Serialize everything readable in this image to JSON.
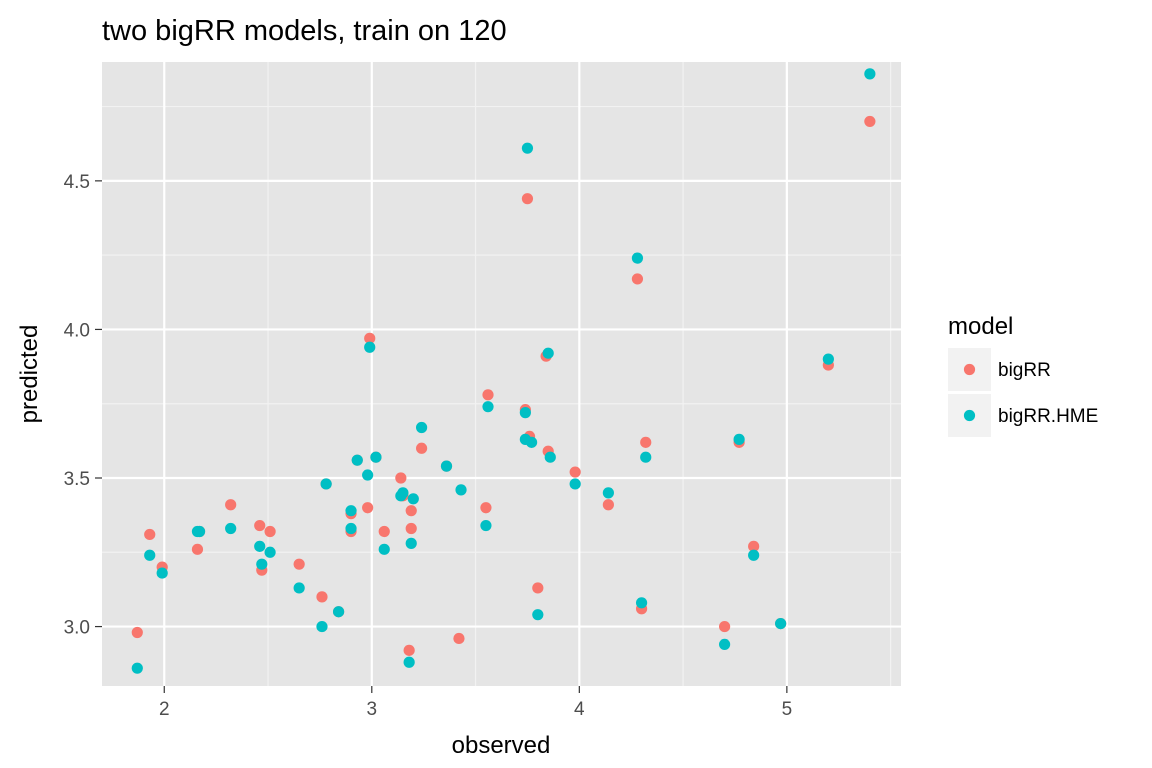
{
  "chart_data": {
    "type": "scatter",
    "title": "two bigRR models, train on 120",
    "xlabel": "observed",
    "ylabel": "predicted",
    "xlim": [
      1.7,
      5.55
    ],
    "ylim": [
      2.8,
      4.9
    ],
    "x_ticks": [
      2,
      3,
      4,
      5
    ],
    "x_minor": [
      2.5,
      3.5,
      4.5,
      5.5
    ],
    "y_ticks": [
      3.0,
      3.5,
      4.0,
      4.5
    ],
    "y_minor": [
      3.25,
      3.75,
      4.25,
      4.75
    ],
    "x_tick_labels": [
      "2",
      "3",
      "4",
      "5"
    ],
    "y_tick_labels": [
      "3.0",
      "3.5",
      "4.0",
      "4.5"
    ],
    "grid": true,
    "legend_position": "right",
    "legend_title": "model",
    "series": [
      {
        "name": "bigRR",
        "color": "#F8766D",
        "x": [
          1.87,
          1.93,
          1.99,
          2.16,
          2.17,
          2.32,
          2.46,
          2.47,
          2.51,
          2.65,
          2.76,
          2.78,
          2.84,
          2.9,
          2.9,
          2.93,
          2.98,
          2.99,
          3.02,
          3.06,
          3.14,
          3.15,
          3.18,
          3.19,
          3.19,
          3.24,
          3.36,
          3.42,
          3.55,
          3.56,
          3.74,
          3.75,
          3.76,
          3.8,
          3.84,
          3.85,
          3.98,
          4.14,
          4.28,
          4.3,
          4.32,
          4.7,
          4.77,
          4.84,
          4.97,
          5.2,
          5.4
        ],
        "y": [
          2.98,
          3.31,
          3.2,
          3.26,
          3.32,
          3.41,
          3.34,
          3.19,
          3.32,
          3.21,
          3.1,
          3.48,
          3.05,
          3.32,
          3.38,
          3.56,
          3.4,
          3.97,
          3.57,
          3.32,
          3.5,
          3.44,
          2.92,
          3.33,
          3.39,
          3.6,
          3.54,
          2.96,
          3.4,
          3.78,
          3.73,
          4.44,
          3.64,
          3.13,
          3.91,
          3.59,
          3.52,
          3.41,
          4.17,
          3.06,
          3.62,
          3.0,
          3.62,
          3.27,
          3.01,
          3.88,
          4.7
        ]
      },
      {
        "name": "bigRR.HME",
        "color": "#00BFC4",
        "x": [
          1.87,
          1.93,
          1.99,
          2.16,
          2.17,
          2.32,
          2.46,
          2.47,
          2.51,
          2.65,
          2.76,
          2.78,
          2.84,
          2.9,
          2.9,
          2.93,
          2.98,
          2.99,
          3.02,
          3.06,
          3.14,
          3.15,
          3.18,
          3.19,
          3.2,
          3.24,
          3.36,
          3.43,
          3.55,
          3.56,
          3.74,
          3.74,
          3.75,
          3.77,
          3.8,
          3.85,
          3.86,
          3.98,
          4.14,
          4.28,
          4.3,
          4.32,
          4.7,
          4.77,
          4.84,
          4.97,
          5.2,
          5.4
        ],
        "y": [
          2.86,
          3.24,
          3.18,
          3.32,
          3.32,
          3.33,
          3.27,
          3.21,
          3.25,
          3.13,
          3.0,
          3.48,
          3.05,
          3.33,
          3.39,
          3.56,
          3.51,
          3.94,
          3.57,
          3.26,
          3.44,
          3.45,
          2.88,
          3.28,
          3.43,
          3.67,
          3.54,
          3.46,
          3.34,
          3.74,
          3.72,
          3.63,
          4.61,
          3.62,
          3.04,
          3.92,
          3.57,
          3.48,
          3.45,
          4.24,
          3.08,
          3.57,
          2.94,
          3.63,
          3.24,
          3.01,
          3.9,
          4.86
        ]
      }
    ]
  }
}
